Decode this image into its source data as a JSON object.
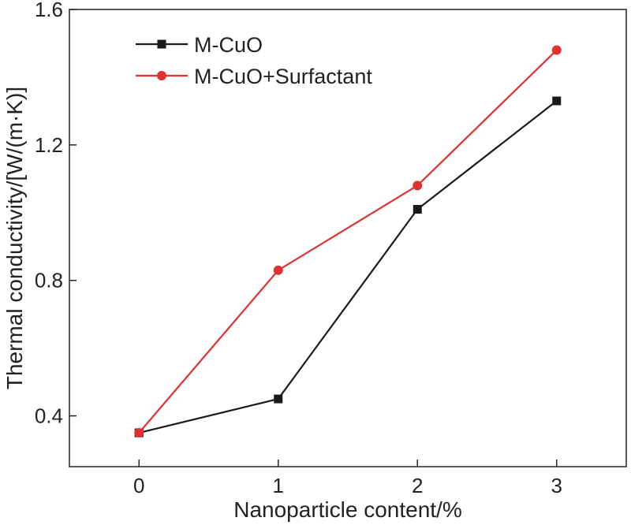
{
  "chart_data": {
    "type": "line",
    "x": [
      0,
      1,
      2,
      3
    ],
    "xlabel": "Nanoparticle content/%",
    "ylabel": "Thermal conductivity/[W/(m·K)]",
    "xlim": [
      -0.5,
      3.5
    ],
    "ylim": [
      0.25,
      1.6
    ],
    "xticks": [
      0,
      1,
      2,
      3
    ],
    "yticks": [
      0.4,
      0.8,
      1.2,
      1.6
    ],
    "ytick_labels": [
      "0.4",
      "0.8",
      "1.2",
      "1.6"
    ],
    "grid": false,
    "legend_position": "top-left",
    "series": [
      {
        "name": "M-CuO",
        "values": [
          0.35,
          0.45,
          1.01,
          1.33
        ],
        "color": "#1a1a1a",
        "marker": "square"
      },
      {
        "name": "M-CuO+Surfactant",
        "values": [
          0.35,
          0.83,
          1.08,
          1.48
        ],
        "color": "#e03030",
        "marker": "circle"
      }
    ]
  }
}
